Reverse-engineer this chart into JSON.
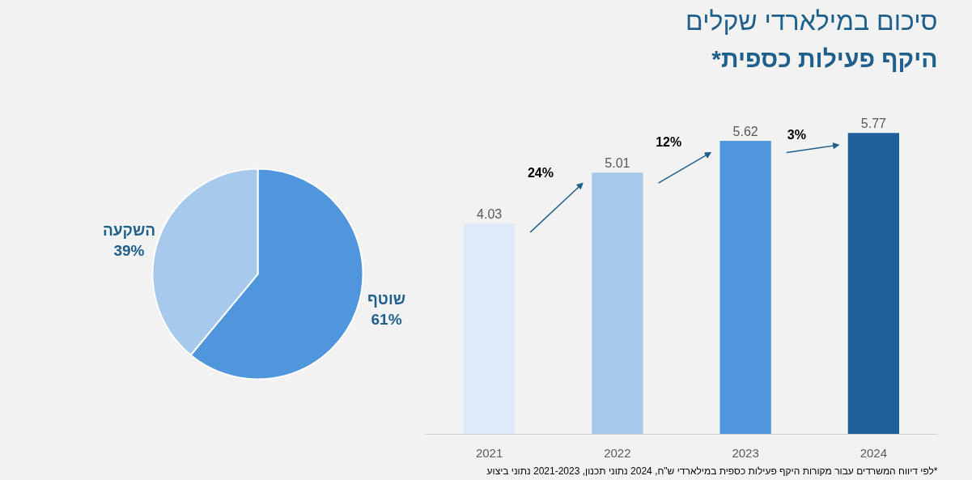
{
  "chart_data": [
    {
      "type": "bar",
      "title": "היקף פעילות כספית*",
      "subtitle": "סיכום במילארדי שקלים",
      "categories": [
        "2021",
        "2022",
        "2023",
        "2024"
      ],
      "values": [
        4.03,
        5.01,
        5.62,
        5.77
      ],
      "colors": [
        "#deeaf7",
        "#a6c9ec",
        "#4f96dc",
        "#1f5f9b"
      ],
      "data_labels": true,
      "grid": false,
      "annotations": [
        "24%",
        "12%",
        "3%",
        "*לפי דיווח המשרדים עבור מקורות היקף פעילות כספית במילארדי ש\"ח, 2024 נתוני תכנון, 2021-2023 נתוני ביצוע"
      ]
    },
    {
      "type": "pie",
      "categories": [
        "שוטף",
        "השקעה"
      ],
      "values": [
        61,
        39
      ],
      "colors": [
        "#4f96dc",
        "#a6c9ec"
      ],
      "value_labels": [
        "61%",
        "39%"
      ]
    }
  ]
}
